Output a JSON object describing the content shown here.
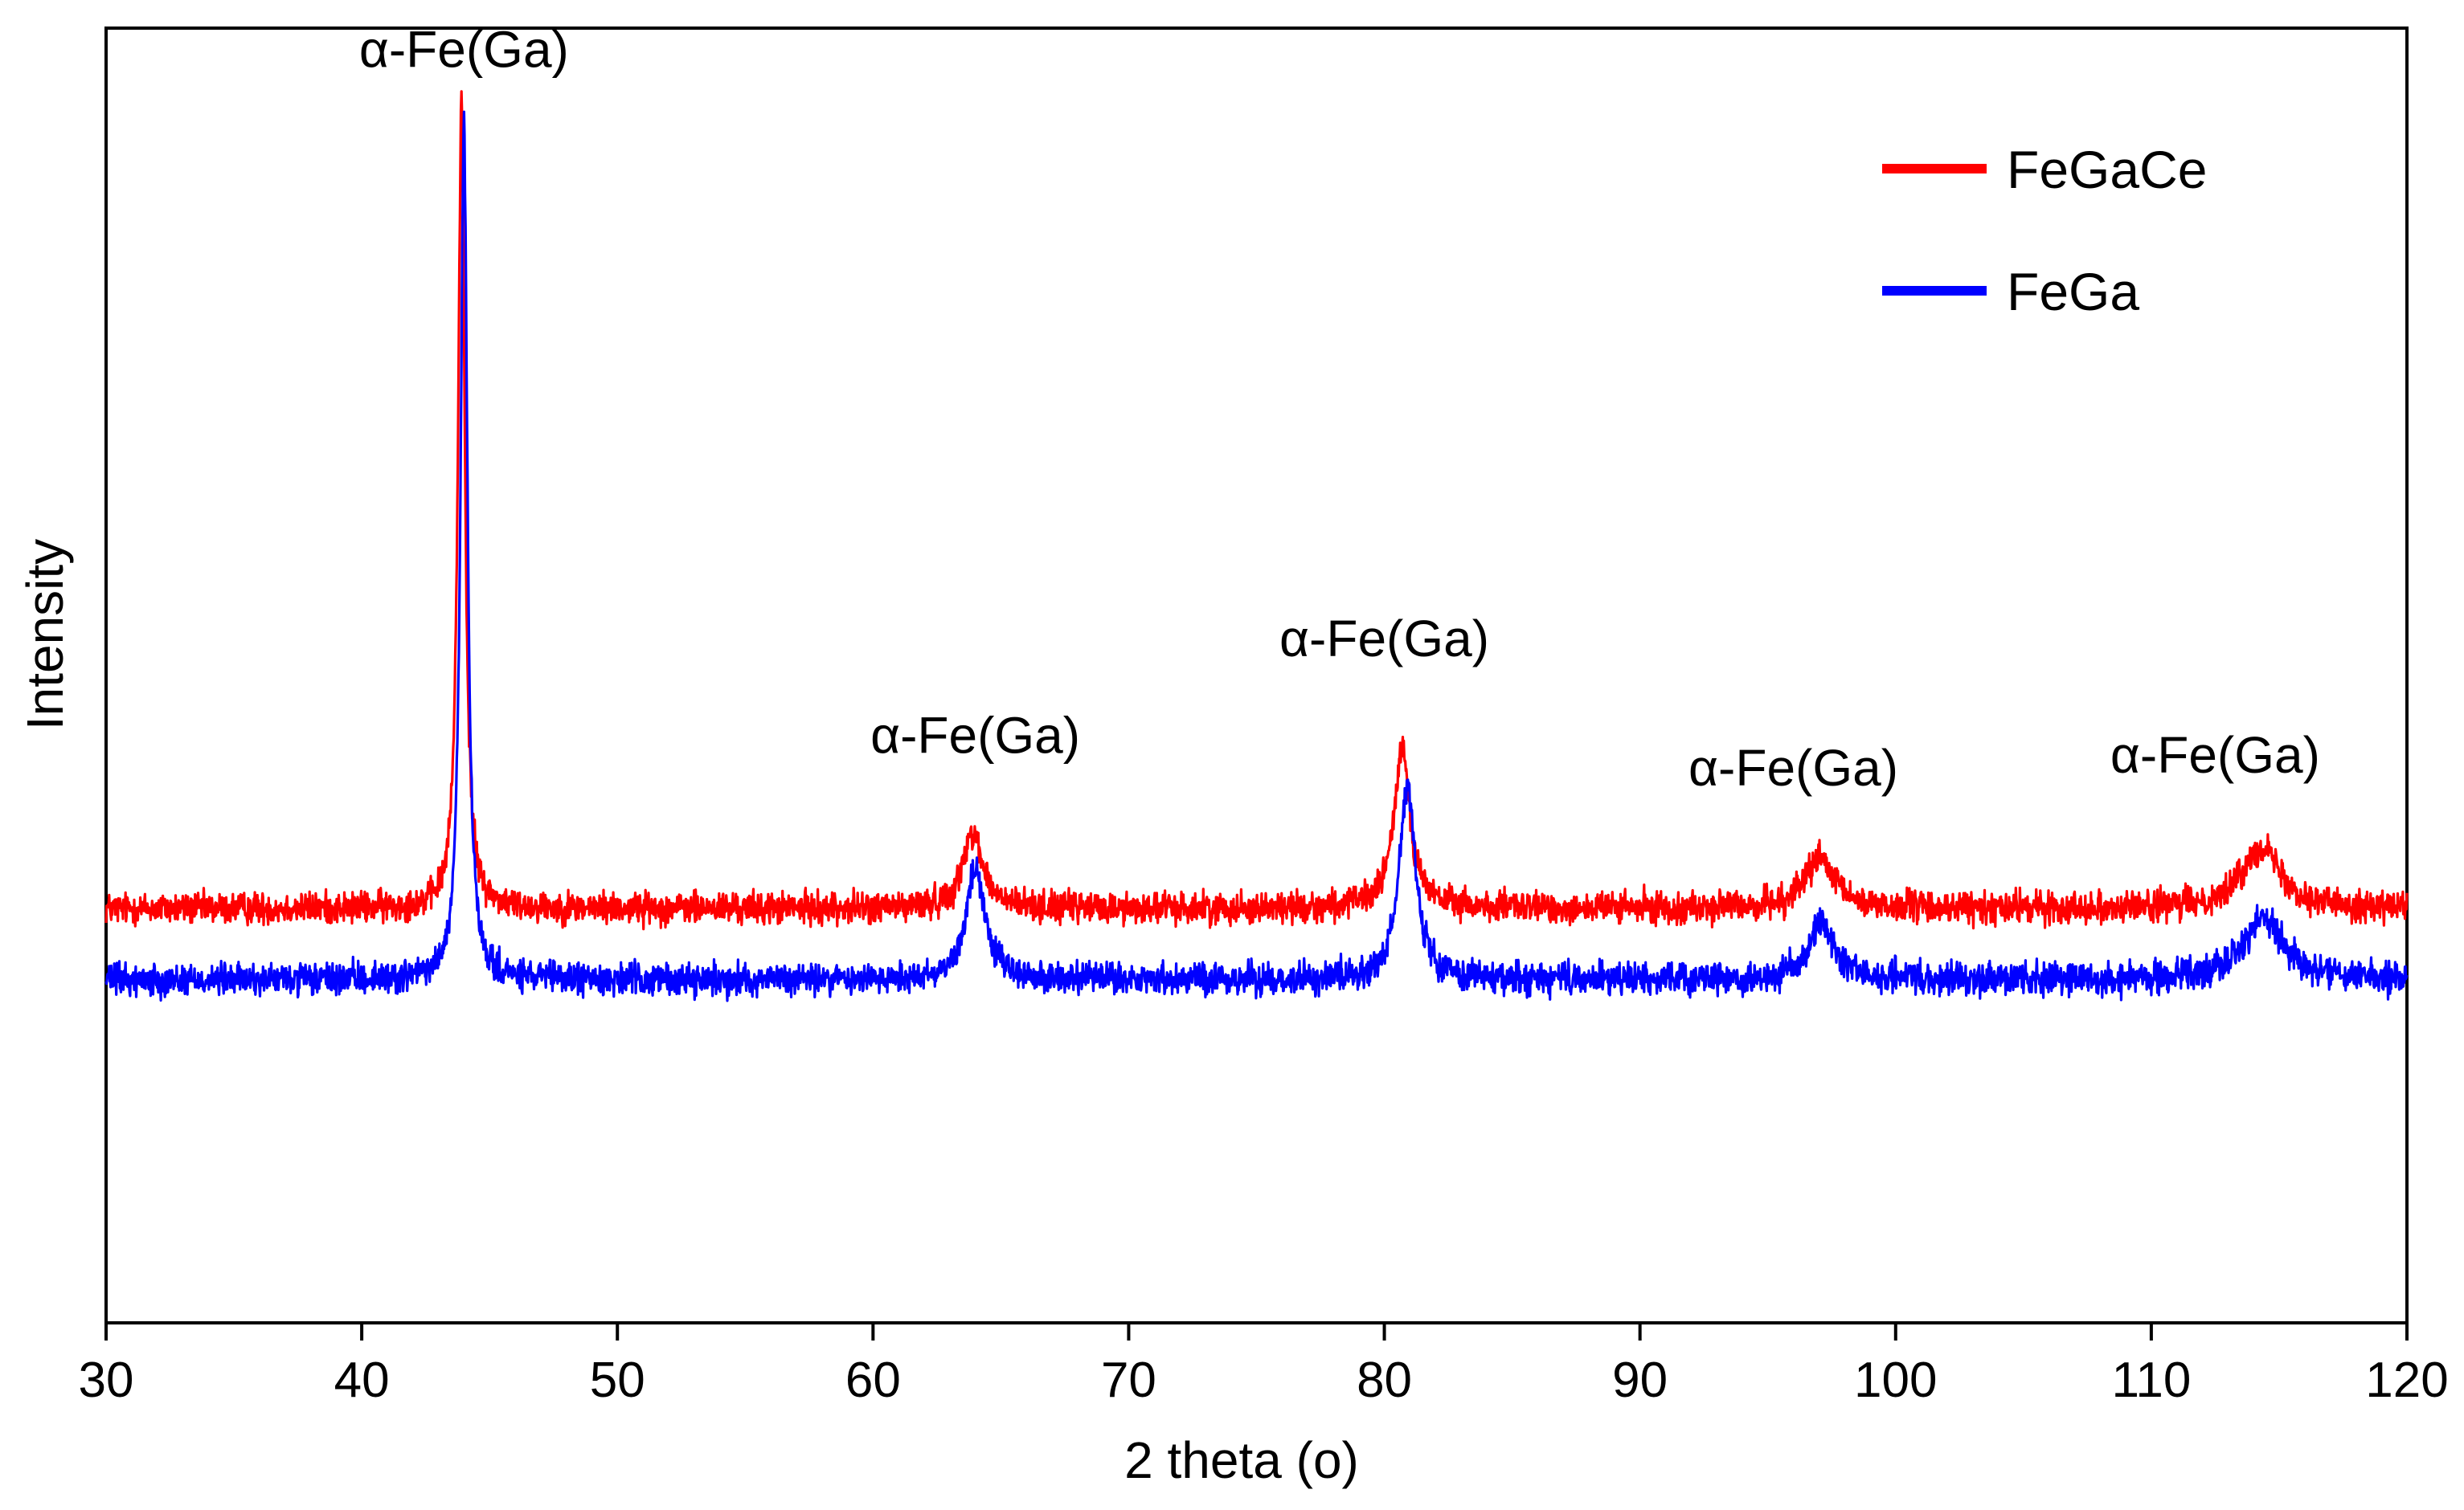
{
  "chart_data": {
    "type": "line",
    "title": "",
    "xlabel": "2 theta (o)",
    "ylabel": "Intensity",
    "xlim": [
      30,
      120
    ],
    "ylim": [
      0,
      100
    ],
    "x_ticks": [
      30,
      40,
      50,
      60,
      70,
      80,
      90,
      100,
      110,
      120
    ],
    "x_tick_labels": [
      "30",
      "40",
      "50",
      "60",
      "70",
      "80",
      "90",
      "100",
      "110",
      "120"
    ],
    "y_ticks_shown": false,
    "grid": false,
    "legend_position": "top-right",
    "annotations": [
      {
        "text": "α-Fe(Ga)",
        "x": 44.0,
        "y": 97.0
      },
      {
        "text": "α-Fe(Ga)",
        "x": 64.0,
        "y": 44.0
      },
      {
        "text": "α-Fe(Ga)",
        "x": 80.0,
        "y": 51.5
      },
      {
        "text": "α-Fe(Ga)",
        "x": 96.0,
        "y": 41.5
      },
      {
        "text": "α-Fe(Ga)",
        "x": 112.5,
        "y": 42.5
      }
    ],
    "series": [
      {
        "name": "FeGaCe",
        "color": "#ff0000",
        "baseline": 32.0,
        "noise": 0.9,
        "peaks": [
          {
            "center": 43.9,
            "height": 62.0,
            "width": 0.16
          },
          {
            "center": 63.9,
            "height": 6.0,
            "width": 0.45
          },
          {
            "center": 80.7,
            "height": 12.5,
            "width": 0.38
          },
          {
            "center": 97.0,
            "height": 3.8,
            "width": 0.7
          },
          {
            "center": 114.3,
            "height": 4.8,
            "width": 0.9
          }
        ]
      },
      {
        "name": "FeGa",
        "color": "#0000ff",
        "baseline": 26.5,
        "noise": 0.9,
        "peaks": [
          {
            "center": 44.0,
            "height": 66.0,
            "width": 0.16
          },
          {
            "center": 64.0,
            "height": 8.5,
            "width": 0.45
          },
          {
            "center": 80.9,
            "height": 15.0,
            "width": 0.38
          },
          {
            "center": 97.1,
            "height": 4.5,
            "width": 0.55
          },
          {
            "center": 114.4,
            "height": 4.8,
            "width": 0.9
          }
        ]
      }
    ]
  }
}
